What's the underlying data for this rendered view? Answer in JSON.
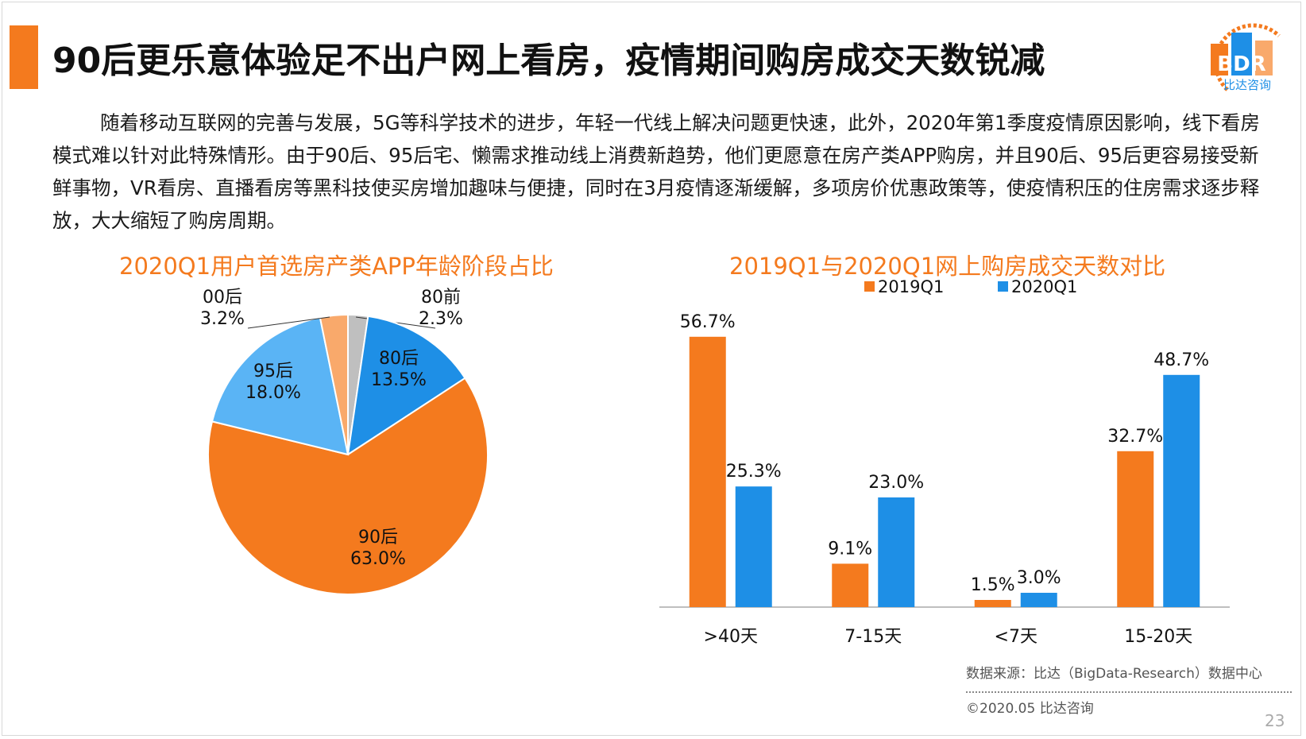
{
  "title": "90后更乐意体验足不出户网上看房，疫情期间购房成交天数锐减",
  "logo": {
    "text": "BDR",
    "subtitle": "比达咨询",
    "colors": [
      "#f47a1e",
      "#1e8fe6"
    ]
  },
  "intro": "随着移动互联网的完善与发展，5G等科学技术的进步，年轻一代线上解决问题更快速，此外，2020年第1季度疫情原因影响，线下看房模式难以针对此特殊情形。由于90后、95后宅、懒需求推动线上消费新趋势，他们更愿意在房产类APP购房，并且90后、95后更容易接受新鲜事物，VR看房、直播看房等黑科技使买房增加趣味与便捷，同时在3月疫情逐渐缓解，多项房价优惠政策等，使疫情积压的住房需求逐步释放，大大缩短了购房周期。",
  "chart_data": [
    {
      "type": "pie",
      "title": "2020Q1用户首选房产类APP年龄阶段占比",
      "slices": [
        {
          "label": "80前",
          "value": 2.3,
          "display": "2.3%",
          "color": "#bfbfbf"
        },
        {
          "label": "80后",
          "value": 13.5,
          "display": "13.5%",
          "color": "#1e8fe6"
        },
        {
          "label": "90后",
          "value": 63.0,
          "display": "63.0%",
          "color": "#f47a1e"
        },
        {
          "label": "95后",
          "value": 18.0,
          "display": "18.0%",
          "color": "#5ab4f5"
        },
        {
          "label": "00后",
          "value": 3.2,
          "display": "3.2%",
          "color": "#f9a96b"
        }
      ]
    },
    {
      "type": "bar",
      "title": "2019Q1与2020Q1网上购房成交天数对比",
      "categories": [
        ">40天",
        "7-15天",
        "<7天",
        "15-20天"
      ],
      "series": [
        {
          "name": "2019Q1",
          "color": "#f47a1e",
          "values": [
            56.7,
            9.1,
            1.5,
            32.7
          ],
          "display": [
            "56.7%",
            "9.1%",
            "1.5%",
            "32.7%"
          ]
        },
        {
          "name": "2020Q1",
          "color": "#1e8fe6",
          "values": [
            25.3,
            23.0,
            3.0,
            48.7
          ],
          "display": [
            "25.3%",
            "23.0%",
            "3.0%",
            "48.7%"
          ]
        }
      ],
      "ylim": [
        0,
        60
      ],
      "legend": "top-center",
      "grid": false
    }
  ],
  "source": "数据来源：比达（BigData-Research）数据中心",
  "copyright": "©2020.05 比达咨询",
  "page_number": "23"
}
